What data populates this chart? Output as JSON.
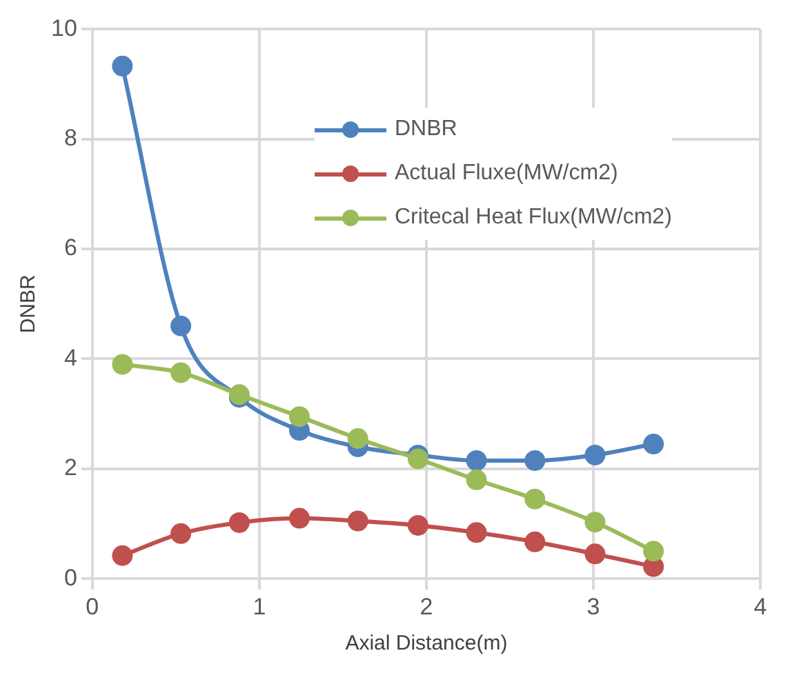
{
  "chart_data": {
    "type": "line",
    "xlabel": "Axial Distance(m)",
    "ylabel": "DNBR",
    "x": [
      0.18,
      0.53,
      0.88,
      1.24,
      1.59,
      1.95,
      2.3,
      2.65,
      3.01,
      3.36
    ],
    "series": [
      {
        "name": "DNBR",
        "color": "#4f81bd",
        "values": [
          9.33,
          4.6,
          3.3,
          2.7,
          2.4,
          2.25,
          2.15,
          2.15,
          2.25,
          2.45
        ]
      },
      {
        "name": "Actual Fluxe(MW/cm2)",
        "color": "#c0504d",
        "values": [
          0.42,
          0.82,
          1.02,
          1.1,
          1.05,
          0.97,
          0.84,
          0.67,
          0.45,
          0.22
        ]
      },
      {
        "name": "Critecal Heat Flux(MW/cm2)",
        "color": "#9bbb59",
        "values": [
          3.9,
          3.75,
          3.35,
          2.95,
          2.55,
          2.18,
          1.8,
          1.45,
          1.03,
          0.5
        ]
      }
    ],
    "xlim": [
      0,
      4
    ],
    "xticks": [
      0,
      1,
      2,
      3,
      4
    ],
    "ylim": [
      0,
      10
    ],
    "yticks": [
      0,
      2,
      4,
      6,
      8,
      10
    ],
    "grid": true,
    "legend": "top right",
    "marker": "circle"
  }
}
